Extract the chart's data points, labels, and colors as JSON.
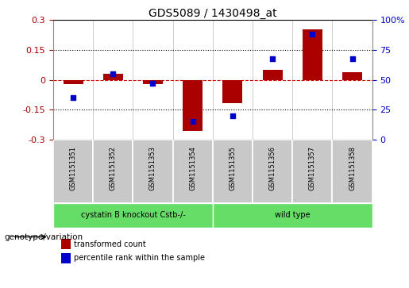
{
  "title": "GDS5089 / 1430498_at",
  "samples": [
    "GSM1151351",
    "GSM1151352",
    "GSM1151353",
    "GSM1151354",
    "GSM1151355",
    "GSM1151356",
    "GSM1151357",
    "GSM1151358"
  ],
  "transformed_count": [
    -0.02,
    0.03,
    -0.02,
    -0.255,
    -0.115,
    0.05,
    0.255,
    0.04
  ],
  "percentile_rank": [
    35,
    55,
    47,
    15,
    20,
    68,
    88,
    68
  ],
  "group1_label": "cystatin B knockout Cstb-/-",
  "group2_label": "wild type",
  "group1_indices": [
    0,
    1,
    2,
    3
  ],
  "group2_indices": [
    4,
    5,
    6,
    7
  ],
  "group_color": "#66dd66",
  "bar_color": "#aa0000",
  "dot_color": "#0000cc",
  "ylim_left": [
    -0.3,
    0.3
  ],
  "ylim_right": [
    0,
    100
  ],
  "yticks_left": [
    -0.3,
    -0.15,
    0.0,
    0.15,
    0.3
  ],
  "yticks_right": [
    0,
    25,
    50,
    75,
    100
  ],
  "legend_red_label": "transformed count",
  "legend_blue_label": "percentile rank within the sample",
  "annotation_label": "genotype/variation",
  "hline_color": "#cc0000",
  "dotted_line_color": "#000000",
  "tick_label_bg": "#c8c8c8",
  "bar_width": 0.5,
  "title_fontsize": 10,
  "axis_fontsize": 8,
  "label_fontsize": 7,
  "sample_fontsize": 6
}
